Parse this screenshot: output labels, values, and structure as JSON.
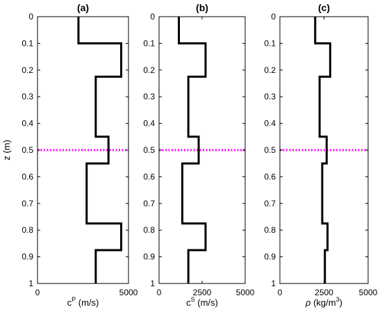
{
  "chart_data": [
    {
      "type": "line",
      "title": "(a)",
      "ylabel": "z (m)",
      "xlabel_parts": [
        {
          "t": "c"
        },
        {
          "t": "P",
          "sup": true
        },
        {
          "t": " (m/s)"
        }
      ],
      "xlim": [
        0,
        5000
      ],
      "ylim": [
        0,
        1
      ],
      "y_reversed": true,
      "x_ticks": [
        "0",
        "5000"
      ],
      "y_ticks": [
        "0",
        "0.1",
        "0.2",
        "0.3",
        "0.4",
        "0.5",
        "0.6",
        "0.7",
        "0.8",
        "0.9",
        "1"
      ],
      "series": [
        {
          "values": [
            {
              "x": 2250,
              "y": 0
            },
            {
              "x": 2250,
              "y": 0.1
            },
            {
              "x": 4600,
              "y": 0.1
            },
            {
              "x": 4600,
              "y": 0.225
            },
            {
              "x": 3200,
              "y": 0.225
            },
            {
              "x": 3200,
              "y": 0.45
            },
            {
              "x": 3900,
              "y": 0.45
            },
            {
              "x": 3900,
              "y": 0.55
            },
            {
              "x": 2700,
              "y": 0.55
            },
            {
              "x": 2700,
              "y": 0.775
            },
            {
              "x": 4600,
              "y": 0.775
            },
            {
              "x": 4600,
              "y": 0.875
            },
            {
              "x": 3200,
              "y": 0.875
            },
            {
              "x": 3200,
              "y": 1
            }
          ]
        }
      ],
      "reference_line": {
        "y": 0.5,
        "color": "#ff00ff",
        "style": "dotted"
      },
      "grid": false
    },
    {
      "type": "line",
      "title": "(b)",
      "xlabel_parts": [
        {
          "t": "c"
        },
        {
          "t": "S",
          "sup": true
        },
        {
          "t": " (m/s)"
        }
      ],
      "xlim": [
        0,
        5000
      ],
      "ylim": [
        0,
        1
      ],
      "y_reversed": true,
      "x_ticks": [
        "0",
        "2500",
        "5000"
      ],
      "y_ticks": [
        "0",
        "0.1",
        "0.2",
        "0.3",
        "0.4",
        "0.5",
        "0.6",
        "0.7",
        "0.8",
        "0.9",
        "1"
      ],
      "series": [
        {
          "values": [
            {
              "x": 1150,
              "y": 0
            },
            {
              "x": 1150,
              "y": 0.1
            },
            {
              "x": 2700,
              "y": 0.1
            },
            {
              "x": 2700,
              "y": 0.225
            },
            {
              "x": 1700,
              "y": 0.225
            },
            {
              "x": 1700,
              "y": 0.45
            },
            {
              "x": 2300,
              "y": 0.45
            },
            {
              "x": 2300,
              "y": 0.55
            },
            {
              "x": 1350,
              "y": 0.55
            },
            {
              "x": 1350,
              "y": 0.775
            },
            {
              "x": 2700,
              "y": 0.775
            },
            {
              "x": 2700,
              "y": 0.875
            },
            {
              "x": 1700,
              "y": 0.875
            },
            {
              "x": 1700,
              "y": 1
            }
          ]
        }
      ],
      "reference_line": {
        "y": 0.5,
        "color": "#ff00ff",
        "style": "dotted"
      },
      "grid": false
    },
    {
      "type": "line",
      "title": "(c)",
      "xlabel_parts": [
        {
          "t": "ρ",
          "italic": true
        },
        {
          "t": " (kg/m"
        },
        {
          "t": "3",
          "sup": true
        },
        {
          "t": ")"
        }
      ],
      "xlim": [
        0,
        5000
      ],
      "ylim": [
        0,
        1
      ],
      "y_reversed": true,
      "x_ticks": [
        "0",
        "2500",
        "5000"
      ],
      "y_ticks": [
        "0",
        "0.1",
        "0.2",
        "0.3",
        "0.4",
        "0.5",
        "0.6",
        "0.7",
        "0.8",
        "0.9",
        "1"
      ],
      "series": [
        {
          "values": [
            {
              "x": 2000,
              "y": 0
            },
            {
              "x": 2000,
              "y": 0.1
            },
            {
              "x": 2850,
              "y": 0.1
            },
            {
              "x": 2850,
              "y": 0.225
            },
            {
              "x": 2250,
              "y": 0.225
            },
            {
              "x": 2250,
              "y": 0.45
            },
            {
              "x": 2650,
              "y": 0.45
            },
            {
              "x": 2650,
              "y": 0.55
            },
            {
              "x": 2400,
              "y": 0.55
            },
            {
              "x": 2400,
              "y": 0.775
            },
            {
              "x": 2700,
              "y": 0.775
            },
            {
              "x": 2700,
              "y": 0.875
            },
            {
              "x": 2550,
              "y": 0.875
            },
            {
              "x": 2550,
              "y": 1
            }
          ]
        }
      ],
      "reference_line": {
        "y": 0.5,
        "color": "#ff00ff",
        "style": "dotted"
      },
      "grid": false
    }
  ]
}
